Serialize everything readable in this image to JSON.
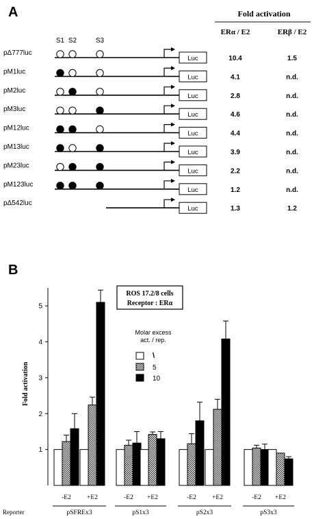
{
  "panel_a": {
    "label": "A",
    "header": "Fold activation",
    "col_alpha": "ERα / E2",
    "col_beta": "ERβ / E2",
    "site_labels": [
      "S1",
      "S2",
      "S3"
    ],
    "luc_label": "Luc",
    "constructs": [
      {
        "name": "pΔ777luc",
        "sites": [
          "o",
          "o",
          "o"
        ],
        "alpha": "10.4",
        "beta": "1.5",
        "short": false
      },
      {
        "name": "pM1luc",
        "sites": [
          "f",
          "o",
          "o"
        ],
        "alpha": "4.1",
        "beta": "n.d.",
        "short": false
      },
      {
        "name": "pM2luc",
        "sites": [
          "o",
          "f",
          "o"
        ],
        "alpha": "2.8",
        "beta": "n.d.",
        "short": false
      },
      {
        "name": "pM3luc",
        "sites": [
          "o",
          "o",
          "f"
        ],
        "alpha": "4.6",
        "beta": "n.d.",
        "short": false
      },
      {
        "name": "pM12luc",
        "sites": [
          "f",
          "f",
          "o"
        ],
        "alpha": "4.4",
        "beta": "n.d.",
        "short": false
      },
      {
        "name": "pM13luc",
        "sites": [
          "f",
          "o",
          "f"
        ],
        "alpha": "3.9",
        "beta": "n.d.",
        "short": false
      },
      {
        "name": "pM23luc",
        "sites": [
          "o",
          "f",
          "f"
        ],
        "alpha": "2.2",
        "beta": "n.d.",
        "short": false
      },
      {
        "name": "pM123luc",
        "sites": [
          "f",
          "f",
          "f"
        ],
        "alpha": "1.2",
        "beta": "n.d.",
        "short": false
      },
      {
        "name": "pΔ542luc",
        "sites": [],
        "alpha": "1.3",
        "beta": "1.2",
        "short": true
      }
    ]
  },
  "panel_b": {
    "label": "B",
    "box_line1": "ROS 17.2/8 cells",
    "box_line2": "Receptor : ERα",
    "legend_title1": "Molar excess",
    "legend_title2": "act. / rep.",
    "legend_items": [
      "\\",
      "5",
      "10"
    ],
    "reporter_label": "Reporter",
    "treatments": [
      "-E2",
      "+E2"
    ],
    "reporters": [
      "pSFREx3",
      "pS1x3",
      "pS2x3",
      "pS3x3"
    ]
  },
  "chart_data": {
    "type": "bar",
    "ylabel": "Fold activation",
    "ylim": [
      0,
      5.5
    ],
    "yticks": [
      "1",
      "2",
      "3",
      "4",
      "5"
    ],
    "series_legend": [
      "\\",
      "5",
      "10"
    ],
    "groups": [
      {
        "reporter": "pSFREx3",
        "treatment": "-E2",
        "values": [
          1.0,
          1.22,
          1.58
        ],
        "errors": [
          0,
          0.18,
          0.42
        ]
      },
      {
        "reporter": "pSFREx3",
        "treatment": "+E2",
        "values": [
          1.0,
          2.24,
          5.1
        ],
        "errors": [
          0,
          0.22,
          0.34
        ]
      },
      {
        "reporter": "pS1x3",
        "treatment": "-E2",
        "values": [
          1.0,
          1.12,
          1.18
        ],
        "errors": [
          0,
          0.14,
          0.32
        ]
      },
      {
        "reporter": "pS1x3",
        "treatment": "+E2",
        "values": [
          1.0,
          1.42,
          1.3
        ],
        "errors": [
          0,
          0.07,
          0.2
        ]
      },
      {
        "reporter": "pS2x3",
        "treatment": "-E2",
        "values": [
          1.0,
          1.16,
          1.8
        ],
        "errors": [
          0,
          0.28,
          0.52
        ]
      },
      {
        "reporter": "pS2x3",
        "treatment": "+E2",
        "values": [
          1.0,
          2.12,
          4.08
        ],
        "errors": [
          0,
          0.28,
          0.5
        ]
      },
      {
        "reporter": "pS3x3",
        "treatment": "-E2",
        "values": [
          1.0,
          1.04,
          1.0
        ],
        "errors": [
          0,
          0.08,
          0.15
        ]
      },
      {
        "reporter": "pS3x3",
        "treatment": "+E2",
        "values": [
          1.0,
          0.9,
          0.74
        ],
        "errors": [
          0,
          0.0,
          0.06
        ]
      }
    ],
    "colors": {
      "series1": "#ffffff",
      "series2": "#9a9a9a",
      "series3": "#000000"
    }
  }
}
